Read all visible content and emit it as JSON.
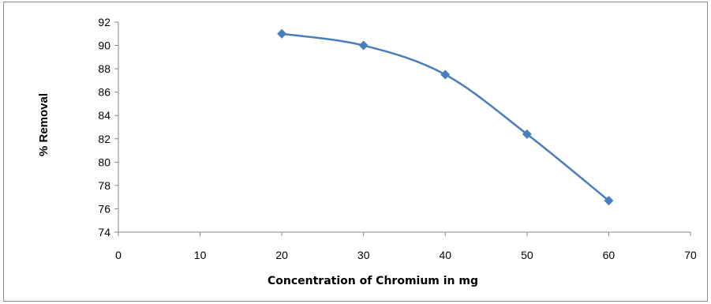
{
  "chart_data": {
    "type": "line",
    "title": "",
    "xlabel": "Concentration of Chromium in mg",
    "ylabel": "% Removal",
    "xlim": [
      0,
      70
    ],
    "ylim": [
      74,
      92
    ],
    "x_ticks": [
      0,
      10,
      20,
      30,
      40,
      50,
      60,
      70
    ],
    "y_ticks": [
      74,
      76,
      78,
      80,
      82,
      84,
      86,
      88,
      90,
      92
    ],
    "grid": false,
    "legend": "none",
    "line_style": "smoothed with diamond markers",
    "series": [
      {
        "x": [
          20,
          30,
          40,
          50,
          60
        ],
        "values": [
          91.0,
          90.0,
          87.5,
          82.4,
          76.7
        ],
        "color": "#4a7ebb"
      }
    ]
  }
}
